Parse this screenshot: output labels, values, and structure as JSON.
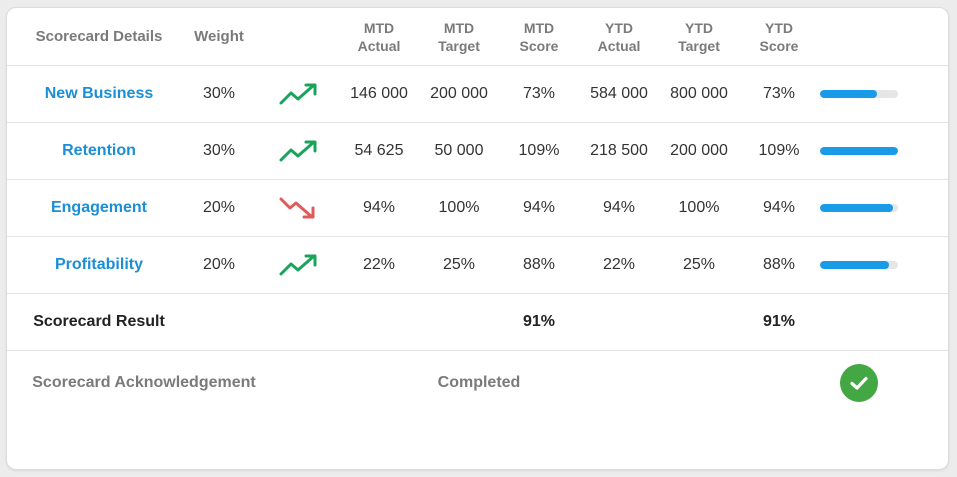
{
  "headers": {
    "details": "Scorecard Details",
    "weight": "Weight",
    "mtd_actual": [
      "MTD",
      "Actual"
    ],
    "mtd_target": [
      "MTD",
      "Target"
    ],
    "mtd_score": [
      "MTD",
      "Score"
    ],
    "ytd_actual": [
      "YTD",
      "Actual"
    ],
    "ytd_target": [
      "YTD",
      "Target"
    ],
    "ytd_score": [
      "YTD",
      "Score"
    ]
  },
  "rows": [
    {
      "name": "New Business",
      "weight": "30%",
      "trend": "trend-up-icon",
      "mtd_actual": "146 000",
      "mtd_target": "200 000",
      "mtd_score": "73%",
      "ytd_actual": "584 000",
      "ytd_target": "800 000",
      "ytd_score": "73%",
      "progress": 0.73
    },
    {
      "name": "Retention",
      "weight": "30%",
      "trend": "trend-up-icon",
      "mtd_actual": "54 625",
      "mtd_target": "50 000",
      "mtd_score": "109%",
      "ytd_actual": "218 500",
      "ytd_target": "200 000",
      "ytd_score": "109%",
      "progress": 1.0
    },
    {
      "name": "Engagement",
      "weight": "20%",
      "trend": "trend-down-icon",
      "mtd_actual": "94%",
      "mtd_target": "100%",
      "mtd_score": "94%",
      "ytd_actual": "94%",
      "ytd_target": "100%",
      "ytd_score": "94%",
      "progress": 0.94
    },
    {
      "name": "Profitability",
      "weight": "20%",
      "trend": "trend-up-icon",
      "mtd_actual": "22%",
      "mtd_target": "25%",
      "mtd_score": "88%",
      "ytd_actual": "22%",
      "ytd_target": "25%",
      "ytd_score": "88%",
      "progress": 0.88
    }
  ],
  "result": {
    "label": "Scorecard Result",
    "mtd_score": "91%",
    "ytd_score": "91%"
  },
  "acknowledgement": {
    "label": "Scorecard Acknowledgement",
    "status": "Completed",
    "icon": "check-circle-icon"
  },
  "colors": {
    "link": "#1a8fd6",
    "progress": "#1a9be8",
    "trend_up": "#1aa35a",
    "trend_down": "#e05a5a",
    "check": "#43a844"
  }
}
